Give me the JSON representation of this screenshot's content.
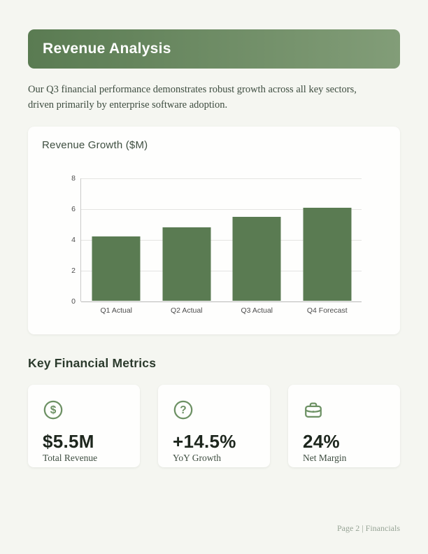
{
  "page": {
    "background": "#f5f6f1",
    "footer_text": "Page 2 | Financials"
  },
  "header": {
    "title": "Revenue Analysis",
    "gradient_start": "#5a7b52",
    "gradient_end": "#829d78",
    "text_color": "#ffffff"
  },
  "intro": {
    "text": "Our Q3 financial performance demonstrates robust growth across all key sectors, driven primarily by enterprise software adoption."
  },
  "chart_data": {
    "type": "bar",
    "title": "Revenue Growth ($M)",
    "categories": [
      "Q1 Actual",
      "Q2 Actual",
      "Q3 Actual",
      "Q4 Forecast"
    ],
    "values": [
      4.2,
      4.8,
      5.5,
      6.1
    ],
    "ylim": [
      0,
      8
    ],
    "yticks": [
      0,
      2,
      4,
      6,
      8
    ],
    "xlabel": "",
    "ylabel": "",
    "grid": true,
    "legend": false,
    "bar_color": "#5a7b52"
  },
  "metrics": {
    "heading": "Key Financial Metrics",
    "cards": [
      {
        "icon": "dollar-circle-icon",
        "value": "$5.5M",
        "label": "Total Revenue"
      },
      {
        "icon": "question-circle-icon",
        "value": "+14.5%",
        "label": "YoY Growth"
      },
      {
        "icon": "briefcase-icon",
        "value": "24%",
        "label": "Net Margin"
      }
    ],
    "icon_color": "#6d9164",
    "value_color": "#1d261d"
  }
}
